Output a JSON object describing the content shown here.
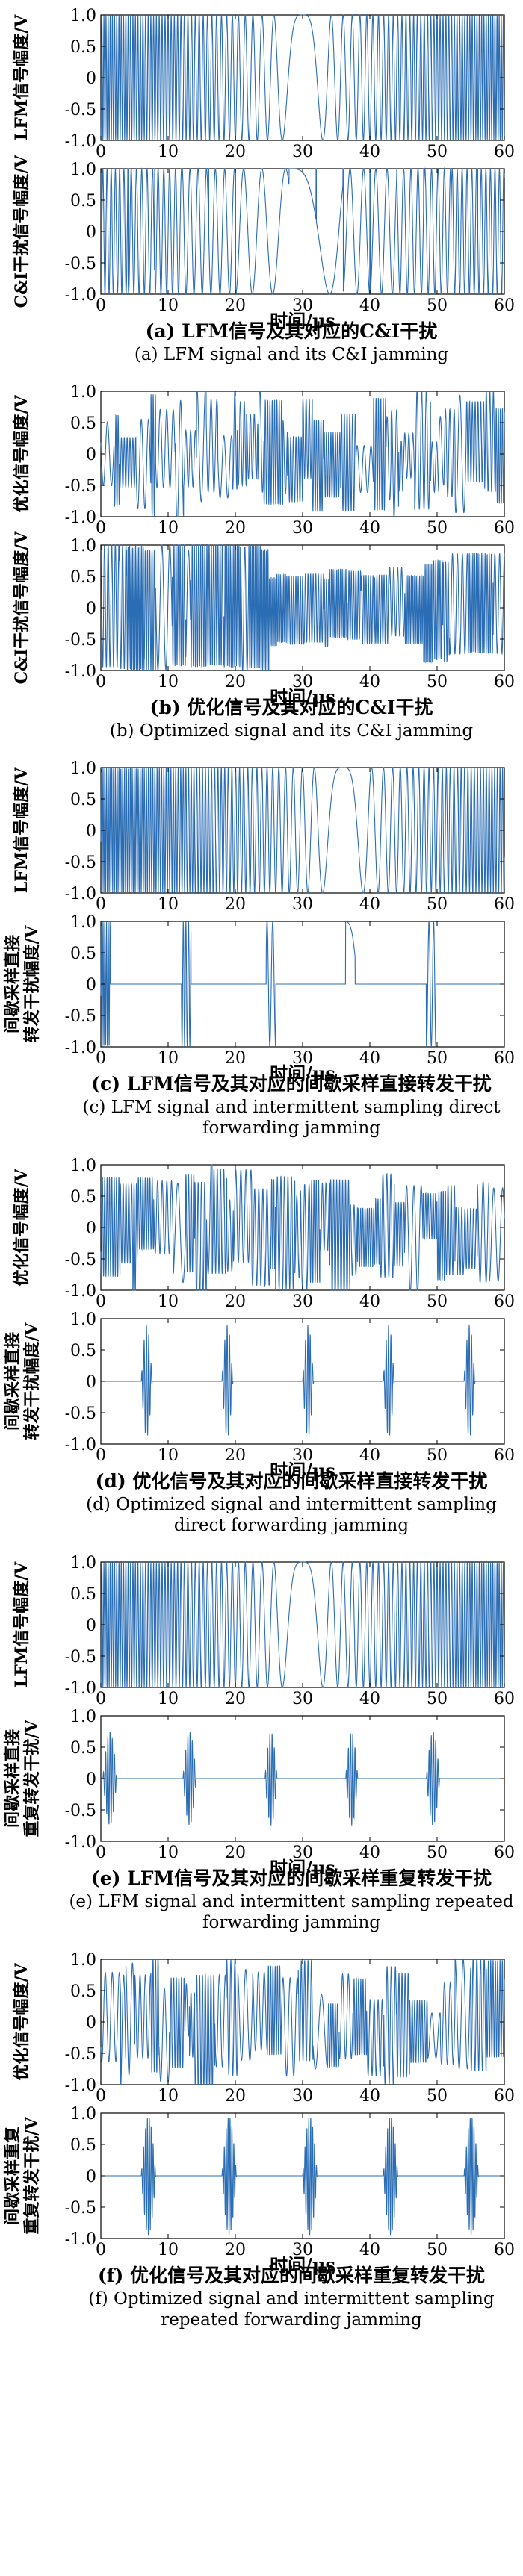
{
  "colors": {
    "series": "#2a6db4",
    "axis": "#000000"
  },
  "panels": [
    {
      "group": "a",
      "caption_cn": "(a) LFM信号及其对应的C&I干扰",
      "caption_en": [
        "(a) LFM signal and its C&I jamming"
      ],
      "charts": [
        {
          "type": "line",
          "title": "",
          "xlabel": "",
          "ylabel": [
            "LFM信号幅度/V"
          ],
          "xlim": [
            0,
            60
          ],
          "ylim": [
            -1,
            1
          ],
          "xticks": [
            "0",
            "10",
            "20",
            "30",
            "40",
            "50",
            "60"
          ],
          "yticks": [
            "-1.0",
            "-0.5",
            "0",
            "0.5",
            "1.0"
          ],
          "signal": {
            "kind": "lfm",
            "period": 60,
            "center": 30,
            "k": 0.11
          }
        },
        {
          "type": "line",
          "title": "",
          "xlabel": "时间/μs",
          "ylabel": [
            "C&I干扰信号幅度/V"
          ],
          "xlim": [
            0,
            60
          ],
          "ylim": [
            -1,
            1
          ],
          "xticks": [
            "0",
            "10",
            "20",
            "30",
            "40",
            "50",
            "60"
          ],
          "yticks": [
            "-1.0",
            "-0.5",
            "0",
            "0.5",
            "1.0"
          ],
          "signal": {
            "kind": "ci",
            "period": 60,
            "center": 30,
            "k": 0.11
          }
        }
      ]
    },
    {
      "group": "b",
      "caption_cn": "(b) 优化信号及其对应的C&I干扰",
      "caption_en": [
        "(b) Optimized signal and its C&I jamming"
      ],
      "charts": [
        {
          "type": "line",
          "title": "",
          "xlabel": "",
          "ylabel": [
            "优化信号幅度/V"
          ],
          "xlim": [
            0,
            60
          ],
          "ylim": [
            -1,
            1
          ],
          "xticks": [
            "0",
            "10",
            "20",
            "30",
            "40",
            "50",
            "60"
          ],
          "yticks": [
            "-1.0",
            "-0.5",
            "0",
            "0.5",
            "1.0"
          ],
          "signal": {
            "kind": "opt",
            "seed": 7
          }
        },
        {
          "type": "line",
          "title": "",
          "xlabel": "时间/μs",
          "ylabel": [
            "C&I干扰信号幅度/V"
          ],
          "xlim": [
            0,
            60
          ],
          "ylim": [
            -1,
            1
          ],
          "xticks": [
            "0",
            "10",
            "20",
            "30",
            "40",
            "50",
            "60"
          ],
          "yticks": [
            "-1.0",
            "-0.5",
            "0",
            "0.5",
            "1.0"
          ],
          "signal": {
            "kind": "optci",
            "seed": 11
          }
        }
      ]
    },
    {
      "group": "c",
      "caption_cn": "(c) LFM信号及其对应的间歇采样直接转发干扰",
      "caption_en": [
        "(c) LFM signal and intermittent sampling direct",
        "forwarding jamming"
      ],
      "charts": [
        {
          "type": "line",
          "title": "",
          "xlabel": "",
          "ylabel": [
            "LFM信号幅度/V"
          ],
          "xlim": [
            0,
            60
          ],
          "ylim": [
            -1,
            1
          ],
          "xticks": [
            "0",
            "10",
            "20",
            "30",
            "40",
            "50",
            "60"
          ],
          "yticks": [
            "-1.0",
            "-0.5",
            "0",
            "0.5",
            "1.0"
          ],
          "signal": {
            "kind": "lfm",
            "period": 60,
            "center": 36,
            "k": 0.11
          }
        },
        {
          "type": "line",
          "title": "",
          "xlabel": "时间/μs",
          "ylabel": [
            "间歇采样直接",
            "转发干扰幅度/V"
          ],
          "xlim": [
            0,
            60
          ],
          "ylim": [
            -1,
            1
          ],
          "xticks": [
            "0",
            "10",
            "20",
            "30",
            "40",
            "50",
            "60"
          ],
          "yticks": [
            "-1.0",
            "-0.5",
            "0",
            "0.5",
            "1.0"
          ],
          "signal": {
            "kind": "pulses",
            "windows": [
              [
                0,
                1.4
              ],
              [
                12,
                13.4
              ],
              [
                24.6,
                26
              ],
              [
                36.4,
                37.8
              ],
              [
                48.4,
                49.8
              ]
            ],
            "base": "lfm",
            "center": 36,
            "k": 0.11
          }
        }
      ]
    },
    {
      "group": "d",
      "caption_cn": "(d) 优化信号及其对应的间歇采样直接转发干扰",
      "caption_en": [
        "(d) Optimized signal and intermittent sampling",
        "direct forwarding jamming"
      ],
      "charts": [
        {
          "type": "line",
          "title": "",
          "xlabel": "",
          "ylabel": [
            "优化信号幅度/V"
          ],
          "xlim": [
            0,
            60
          ],
          "ylim": [
            -1,
            1
          ],
          "xticks": [
            "0",
            "10",
            "20",
            "30",
            "40",
            "50",
            "60"
          ],
          "yticks": [
            "-1.0",
            "-0.5",
            "0",
            "0.5",
            "1.0"
          ],
          "signal": {
            "kind": "opt",
            "seed": 23
          }
        },
        {
          "type": "line",
          "title": "",
          "xlabel": "时间/μs",
          "ylabel": [
            "间歇采样直接",
            "转发干扰幅度/V"
          ],
          "xlim": [
            0,
            60
          ],
          "ylim": [
            -1,
            1
          ],
          "xticks": [
            "0",
            "10",
            "20",
            "30",
            "40",
            "50",
            "60"
          ],
          "yticks": [
            "-1.0",
            "-0.5",
            "0",
            "0.5",
            "1.0"
          ],
          "signal": {
            "kind": "burst",
            "windows": [
              [
                6,
                7.8
              ],
              [
                18,
                19.8
              ],
              [
                30,
                31.8
              ],
              [
                42,
                43.8
              ],
              [
                54,
                55.8
              ]
            ],
            "amp": 0.9,
            "freq": 1.8
          }
        }
      ]
    },
    {
      "group": "e",
      "caption_cn": "(e) LFM信号及其对应的间歇采样重复转发干扰",
      "caption_en": [
        "(e) LFM signal and intermittent sampling repeated",
        "forwarding jamming"
      ],
      "charts": [
        {
          "type": "line",
          "title": "",
          "xlabel": "",
          "ylabel": [
            "LFM信号幅度/V"
          ],
          "xlim": [
            0,
            60
          ],
          "ylim": [
            -1,
            1
          ],
          "xticks": [
            "0",
            "10",
            "20",
            "30",
            "40",
            "50",
            "60"
          ],
          "yticks": [
            "-1.0",
            "-0.5",
            "0",
            "0.5",
            "1.0"
          ],
          "signal": {
            "kind": "lfm",
            "period": 60,
            "center": 30,
            "k": 0.11
          }
        },
        {
          "type": "line",
          "title": "",
          "xlabel": "时间/μs",
          "ylabel": [
            "间歇采样直接",
            "重复转发干扰/V"
          ],
          "xlim": [
            0,
            60
          ],
          "ylim": [
            -1,
            1
          ],
          "xticks": [
            "0",
            "10",
            "20",
            "30",
            "40",
            "50",
            "60"
          ],
          "yticks": [
            "-1.0",
            "-0.5",
            "0",
            "0.5",
            "1.0"
          ],
          "signal": {
            "kind": "burst",
            "windows": [
              [
                0.3,
                2.6
              ],
              [
                12.2,
                14.4
              ],
              [
                24.4,
                26.4
              ],
              [
                36.4,
                38.4
              ],
              [
                48.4,
                50.6
              ]
            ],
            "amp": 0.75,
            "freq": 1.9
          }
        }
      ]
    },
    {
      "group": "f",
      "caption_cn": "(f) 优化信号及其对应的间歇采样重复转发干扰",
      "caption_en": [
        "(f) Optimized signal and intermittent sampling",
        "repeated forwarding jamming"
      ],
      "charts": [
        {
          "type": "line",
          "title": "",
          "xlabel": "",
          "ylabel": [
            "优化信号幅度/V"
          ],
          "xlim": [
            0,
            60
          ],
          "ylim": [
            -1,
            1
          ],
          "xticks": [
            "0",
            "10",
            "20",
            "30",
            "40",
            "50",
            "60"
          ],
          "yticks": [
            "-1.0",
            "-0.5",
            "0",
            "0.5",
            "1.0"
          ],
          "signal": {
            "kind": "opt",
            "seed": 41
          }
        },
        {
          "type": "line",
          "title": "",
          "xlabel": "时间/μs",
          "ylabel": [
            "间歇采样重复",
            "重复转发干扰/V"
          ],
          "xlim": [
            0,
            60
          ],
          "ylim": [
            -1,
            1
          ],
          "xticks": [
            "0",
            "10",
            "20",
            "30",
            "40",
            "50",
            "60"
          ],
          "yticks": [
            "-1.0",
            "-0.5",
            "0",
            "0.5",
            "1.0"
          ],
          "signal": {
            "kind": "burst",
            "windows": [
              [
                6,
                8.4
              ],
              [
                18,
                20.4
              ],
              [
                30,
                32.4
              ],
              [
                42,
                44.4
              ],
              [
                54,
                56.4
              ]
            ],
            "amp": 0.95,
            "freq": 2.2
          }
        }
      ]
    }
  ]
}
